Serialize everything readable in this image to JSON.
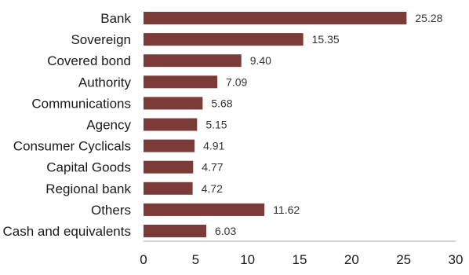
{
  "chart_data": {
    "type": "bar",
    "orientation": "horizontal",
    "categories": [
      "Bank",
      "Sovereign",
      "Covered bond",
      "Authority",
      "Communications",
      "Agency",
      "Consumer Cyclicals",
      "Capital Goods",
      "Regional bank",
      "Others",
      "Cash and equivalents"
    ],
    "values": [
      25.28,
      15.35,
      9.4,
      7.09,
      5.68,
      5.15,
      4.91,
      4.77,
      4.72,
      11.62,
      6.03
    ],
    "value_labels": [
      "25.28",
      "15.35",
      "9.40",
      "7.09",
      "5.68",
      "5.15",
      "4.91",
      "4.77",
      "4.72",
      "11.62",
      "6.03"
    ],
    "x_ticks": [
      "0",
      "5",
      "10",
      "15",
      "20",
      "25",
      "30"
    ],
    "xlim": [
      0,
      30
    ],
    "title": "",
    "xlabel": "",
    "ylabel": "",
    "grid": false,
    "legend": "none",
    "bar_color": "#7b3b36"
  }
}
